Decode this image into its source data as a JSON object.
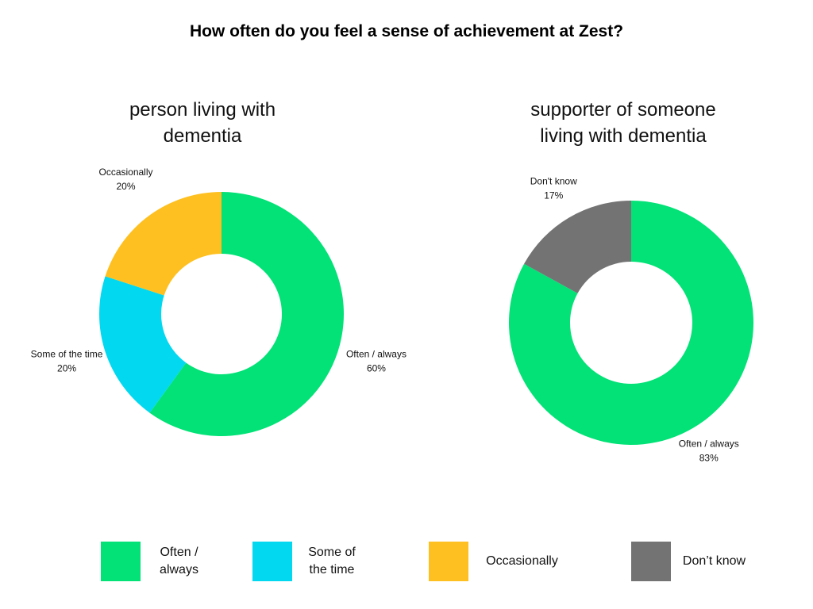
{
  "title": "How often do you feel a sense of achievement at Zest?",
  "chart_data": [
    {
      "type": "donut",
      "title": "person living with dementia",
      "categories": [
        "Often / always",
        "Some of the time",
        "Occasionally"
      ],
      "values": [
        60,
        20,
        20
      ],
      "value_labels": [
        "60%",
        "20%",
        "20%"
      ],
      "colors": [
        "#02e276",
        "#02d8f0",
        "#fec020"
      ]
    },
    {
      "type": "donut",
      "title": "supporter of someone living with dementia",
      "categories": [
        "Often / always",
        "Don't know"
      ],
      "values": [
        83,
        17
      ],
      "value_labels": [
        "83%",
        "17%"
      ],
      "colors": [
        "#02e276",
        "#737373"
      ]
    }
  ],
  "legend": [
    {
      "name": "Often / always",
      "color": "#02e276"
    },
    {
      "name": "Some of the time",
      "color": "#02d8f0"
    },
    {
      "name": "Occasionally",
      "color": "#fec020"
    },
    {
      "name": "Don’t know",
      "color": "#737373"
    }
  ]
}
